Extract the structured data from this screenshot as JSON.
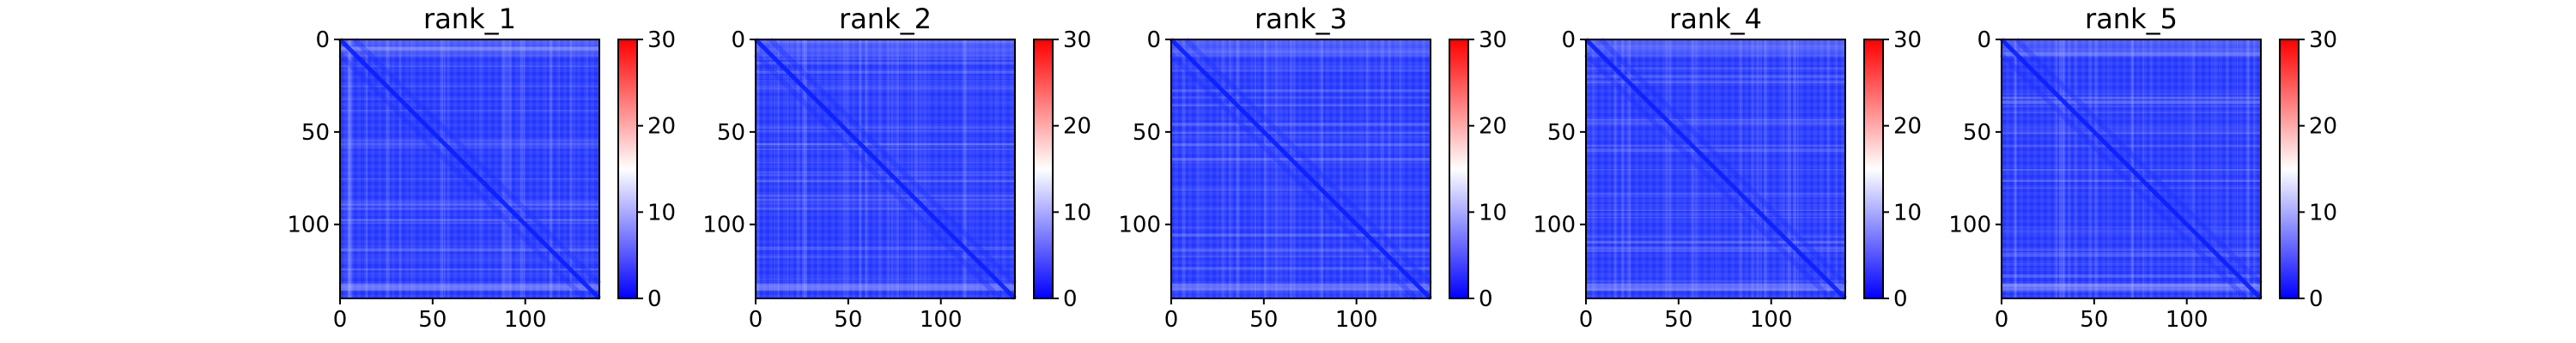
{
  "colors": {
    "low": "#0000ff",
    "mid": "#ffffff",
    "high": "#ff0000"
  },
  "chart_data": [
    {
      "type": "heatmap",
      "title": "rank_1",
      "colormap": "bwr",
      "size": 140,
      "xlim": [
        0,
        140
      ],
      "ylim": [
        140,
        0
      ],
      "xticks": [
        0,
        50,
        100
      ],
      "yticks": [
        0,
        50,
        100
      ],
      "colorbar": {
        "range": [
          0,
          30
        ],
        "ticks": [
          0,
          10,
          20,
          30
        ]
      }
    },
    {
      "type": "heatmap",
      "title": "rank_2",
      "colormap": "bwr",
      "size": 140,
      "xlim": [
        0,
        140
      ],
      "ylim": [
        140,
        0
      ],
      "xticks": [
        0,
        50,
        100
      ],
      "yticks": [
        0,
        50,
        100
      ],
      "colorbar": {
        "range": [
          0,
          30
        ],
        "ticks": [
          0,
          10,
          20,
          30
        ]
      }
    },
    {
      "type": "heatmap",
      "title": "rank_3",
      "colormap": "bwr",
      "size": 140,
      "xlim": [
        0,
        140
      ],
      "ylim": [
        140,
        0
      ],
      "xticks": [
        0,
        50,
        100
      ],
      "yticks": [
        0,
        50,
        100
      ],
      "colorbar": {
        "range": [
          0,
          30
        ],
        "ticks": [
          0,
          10,
          20,
          30
        ]
      }
    },
    {
      "type": "heatmap",
      "title": "rank_4",
      "colormap": "bwr",
      "size": 140,
      "xlim": [
        0,
        140
      ],
      "ylim": [
        140,
        0
      ],
      "xticks": [
        0,
        50,
        100
      ],
      "yticks": [
        0,
        50,
        100
      ],
      "colorbar": {
        "range": [
          0,
          30
        ],
        "ticks": [
          0,
          10,
          20,
          30
        ]
      }
    },
    {
      "type": "heatmap",
      "title": "rank_5",
      "colormap": "bwr",
      "size": 140,
      "xlim": [
        0,
        140
      ],
      "ylim": [
        140,
        0
      ],
      "xticks": [
        0,
        50,
        100
      ],
      "yticks": [
        0,
        50,
        100
      ],
      "colorbar": {
        "range": [
          0,
          30
        ],
        "ticks": [
          0,
          10,
          20,
          30
        ]
      }
    }
  ]
}
